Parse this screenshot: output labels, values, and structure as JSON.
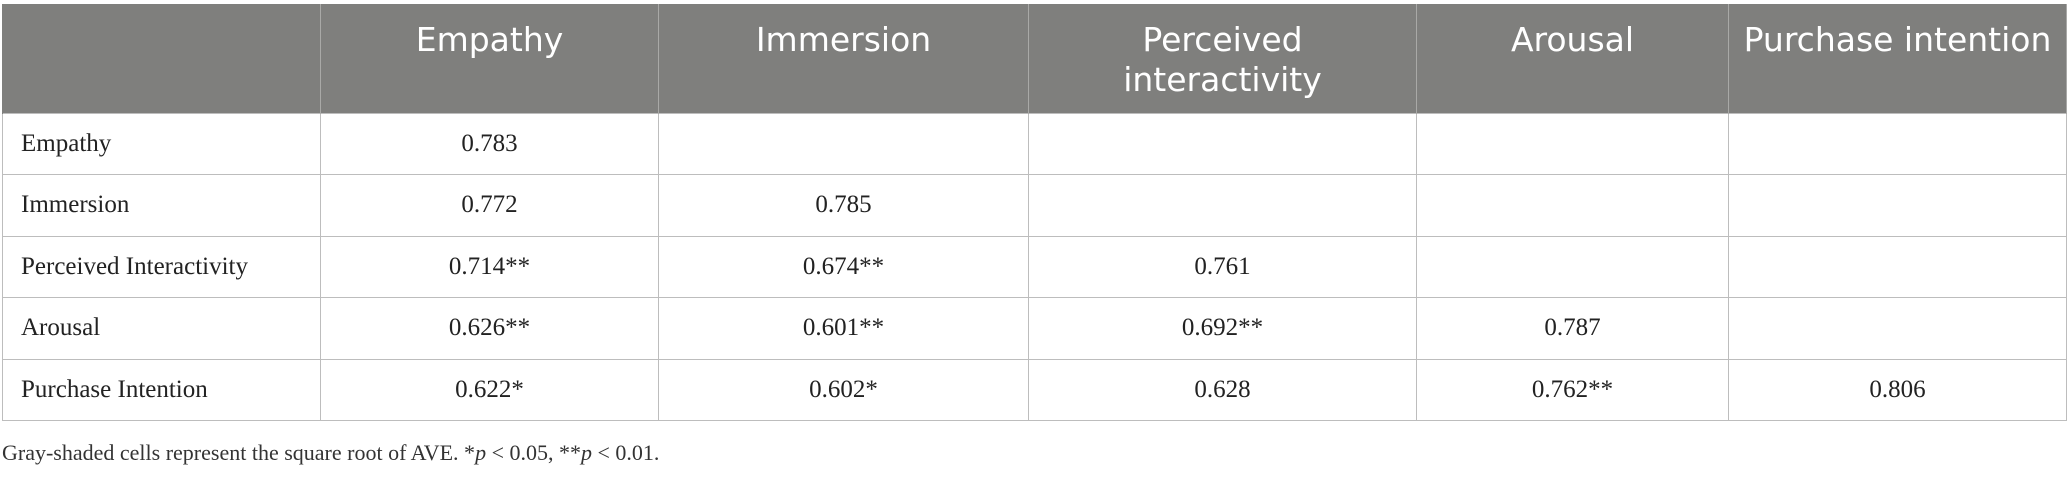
{
  "table": {
    "columns": [
      "",
      "Empathy",
      "Immersion",
      "Perceived interactivity",
      "Arousal",
      "Purchase intention"
    ],
    "rows": [
      {
        "label": "Empathy",
        "cells": [
          "0.783",
          "",
          "",
          "",
          ""
        ]
      },
      {
        "label": "Immersion",
        "cells": [
          "0.772",
          "0.785",
          "",
          "",
          ""
        ]
      },
      {
        "label": "Perceived Interactivity",
        "cells": [
          "0.714**",
          "0.674**",
          "0.761",
          "",
          ""
        ]
      },
      {
        "label": "Arousal",
        "cells": [
          "0.626**",
          "0.601**",
          "0.692**",
          "0.787",
          ""
        ]
      },
      {
        "label": "Purchase Intention",
        "cells": [
          "0.622*",
          "0.602*",
          "0.628",
          "0.762**",
          "0.806"
        ]
      }
    ]
  },
  "footnote": {
    "part1": "Gray-shaded cells represent the square root of AVE. *",
    "p1": "p",
    "part2": " < 0.05, **",
    "p2": "p",
    "part3": " < 0.01."
  },
  "colors": {
    "header_bg": "#7f7f7d",
    "header_text": "#ffffff",
    "grid": "#bdbdbd"
  }
}
